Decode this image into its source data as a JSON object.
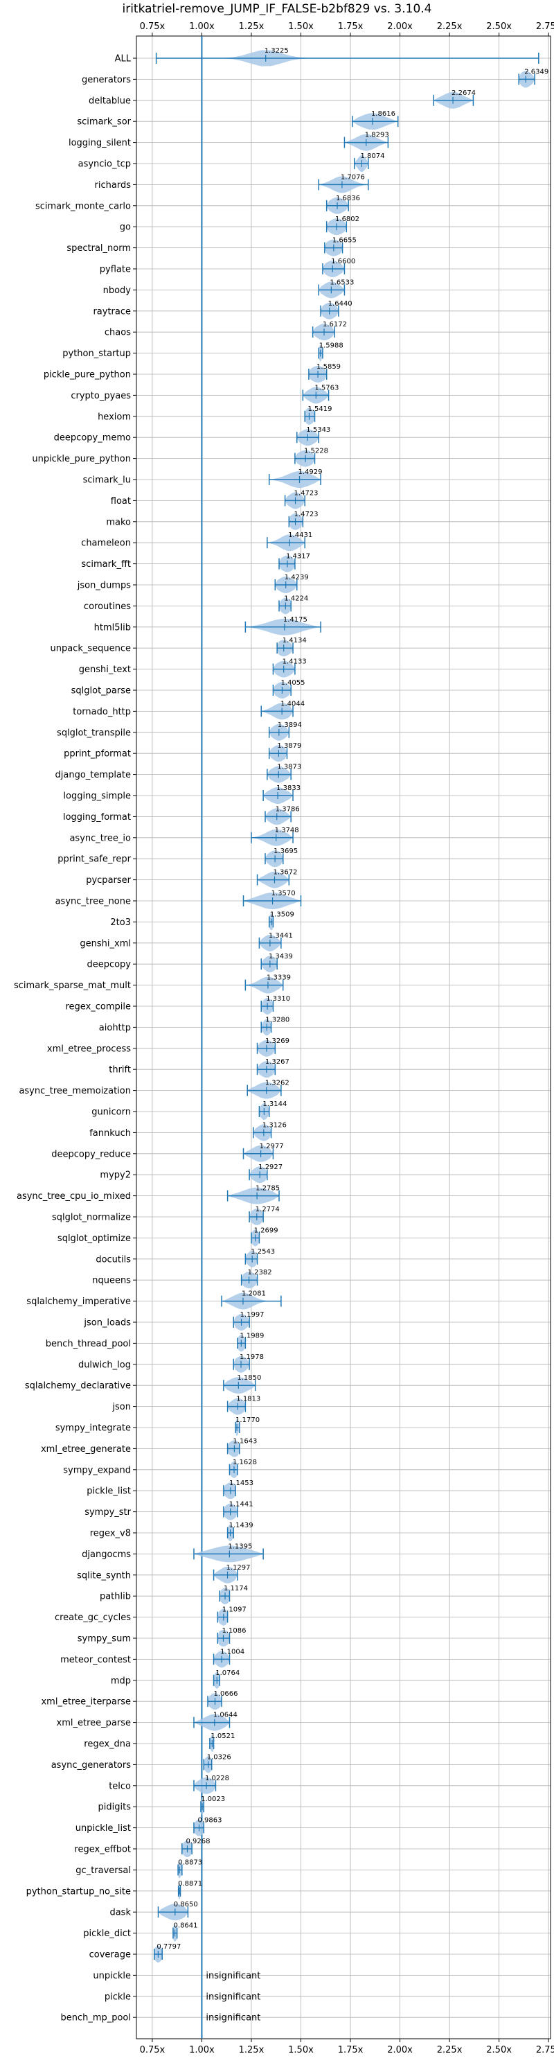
{
  "chart_data": {
    "type": "violin",
    "title": "iritkatriel-remove_JUMP_IF_FALSE-b2bf829 vs. 3.10.4",
    "xlim": [
      0.67,
      2.76
    ],
    "xticks": [
      0.75,
      1.0,
      1.25,
      1.5,
      1.75,
      2.0,
      2.25,
      2.5,
      2.75
    ],
    "xtick_labels": [
      "0.75x",
      "1.00x",
      "1.25x",
      "1.50x",
      "1.75x",
      "2.00x",
      "2.25x",
      "2.50x",
      "2.75x"
    ],
    "reference_line": 1.0,
    "grid": true,
    "colors": {
      "violin": "#a8c8e8",
      "line": "#1f77b4",
      "grid": "#b0b0b0",
      "text": "#000000"
    },
    "insignificant_label": "insignificant",
    "benchmarks": [
      {
        "name": "ALL",
        "value": 1.3225,
        "label": "1.3225",
        "min": 0.77,
        "max": 2.7,
        "spread": 0.08
      },
      {
        "name": "generators",
        "value": 2.6349,
        "label": "2.6349",
        "min": 2.6,
        "max": 2.68,
        "spread": 0.03
      },
      {
        "name": "deltablue",
        "value": 2.2674,
        "label": "2.2674",
        "min": 2.17,
        "max": 2.37,
        "spread": 0.05
      },
      {
        "name": "scimark_sor",
        "value": 1.8616,
        "label": "1.8616",
        "min": 1.76,
        "max": 1.99,
        "spread": 0.06
      },
      {
        "name": "logging_silent",
        "value": 1.8293,
        "label": "1.8293",
        "min": 1.72,
        "max": 1.94,
        "spread": 0.05
      },
      {
        "name": "asyncio_tcp",
        "value": 1.8074,
        "label": "1.8074",
        "min": 1.77,
        "max": 1.84,
        "spread": 0.02
      },
      {
        "name": "richards",
        "value": 1.7076,
        "label": "1.7076",
        "min": 1.59,
        "max": 1.84,
        "spread": 0.05
      },
      {
        "name": "scimark_monte_carlo",
        "value": 1.6836,
        "label": "1.6836",
        "min": 1.63,
        "max": 1.74,
        "spread": 0.04
      },
      {
        "name": "go",
        "value": 1.6802,
        "label": "1.6802",
        "min": 1.63,
        "max": 1.73,
        "spread": 0.04
      },
      {
        "name": "spectral_norm",
        "value": 1.6655,
        "label": "1.6655",
        "min": 1.62,
        "max": 1.71,
        "spread": 0.04
      },
      {
        "name": "pyflate",
        "value": 1.66,
        "label": "1.6600",
        "min": 1.61,
        "max": 1.72,
        "spread": 0.04
      },
      {
        "name": "nbody",
        "value": 1.6533,
        "label": "1.6533",
        "min": 1.59,
        "max": 1.72,
        "spread": 0.04
      },
      {
        "name": "raytrace",
        "value": 1.644,
        "label": "1.6440",
        "min": 1.6,
        "max": 1.69,
        "spread": 0.035
      },
      {
        "name": "chaos",
        "value": 1.6172,
        "label": "1.6172",
        "min": 1.56,
        "max": 1.67,
        "spread": 0.04
      },
      {
        "name": "python_startup",
        "value": 1.5988,
        "label": "1.5988",
        "min": 1.59,
        "max": 1.61,
        "spread": 0.008
      },
      {
        "name": "pickle_pure_python",
        "value": 1.5859,
        "label": "1.5859",
        "min": 1.54,
        "max": 1.63,
        "spread": 0.04
      },
      {
        "name": "crypto_pyaes",
        "value": 1.5763,
        "label": "1.5763",
        "min": 1.51,
        "max": 1.64,
        "spread": 0.04
      },
      {
        "name": "hexiom",
        "value": 1.5419,
        "label": "1.5419",
        "min": 1.52,
        "max": 1.57,
        "spread": 0.025
      },
      {
        "name": "deepcopy_memo",
        "value": 1.5343,
        "label": "1.5343",
        "min": 1.48,
        "max": 1.59,
        "spread": 0.04
      },
      {
        "name": "unpickle_pure_python",
        "value": 1.5228,
        "label": "1.5228",
        "min": 1.47,
        "max": 1.57,
        "spread": 0.04
      },
      {
        "name": "scimark_lu",
        "value": 1.4929,
        "label": "1.4929",
        "min": 1.34,
        "max": 1.6,
        "spread": 0.06
      },
      {
        "name": "float",
        "value": 1.4723,
        "label": "1.4723",
        "min": 1.42,
        "max": 1.52,
        "spread": 0.035
      },
      {
        "name": "mako",
        "value": 1.4723,
        "label": "1.4723",
        "min": 1.44,
        "max": 1.51,
        "spread": 0.03
      },
      {
        "name": "chameleon",
        "value": 1.4431,
        "label": "1.4431",
        "min": 1.33,
        "max": 1.52,
        "spread": 0.045
      },
      {
        "name": "scimark_fft",
        "value": 1.4317,
        "label": "1.4317",
        "min": 1.39,
        "max": 1.47,
        "spread": 0.035
      },
      {
        "name": "json_dumps",
        "value": 1.4239,
        "label": "1.4239",
        "min": 1.37,
        "max": 1.48,
        "spread": 0.04
      },
      {
        "name": "coroutines",
        "value": 1.4224,
        "label": "1.4224",
        "min": 1.39,
        "max": 1.45,
        "spread": 0.025
      },
      {
        "name": "html5lib",
        "value": 1.4175,
        "label": "1.4175",
        "min": 1.22,
        "max": 1.6,
        "spread": 0.08
      },
      {
        "name": "unpack_sequence",
        "value": 1.4134,
        "label": "1.4134",
        "min": 1.38,
        "max": 1.46,
        "spread": 0.035
      },
      {
        "name": "genshi_text",
        "value": 1.4133,
        "label": "1.4133",
        "min": 1.36,
        "max": 1.47,
        "spread": 0.04
      },
      {
        "name": "sqlglot_parse",
        "value": 1.4055,
        "label": "1.4055",
        "min": 1.36,
        "max": 1.45,
        "spread": 0.035
      },
      {
        "name": "tornado_http",
        "value": 1.4044,
        "label": "1.4044",
        "min": 1.3,
        "max": 1.46,
        "spread": 0.045
      },
      {
        "name": "sqlglot_transpile",
        "value": 1.3894,
        "label": "1.3894",
        "min": 1.34,
        "max": 1.44,
        "spread": 0.035
      },
      {
        "name": "pprint_pformat",
        "value": 1.3879,
        "label": "1.3879",
        "min": 1.34,
        "max": 1.43,
        "spread": 0.035
      },
      {
        "name": "django_template",
        "value": 1.3873,
        "label": "1.3873",
        "min": 1.33,
        "max": 1.45,
        "spread": 0.04
      },
      {
        "name": "logging_simple",
        "value": 1.3833,
        "label": "1.3833",
        "min": 1.31,
        "max": 1.46,
        "spread": 0.045
      },
      {
        "name": "logging_format",
        "value": 1.3786,
        "label": "1.3786",
        "min": 1.32,
        "max": 1.45,
        "spread": 0.04
      },
      {
        "name": "async_tree_io",
        "value": 1.3748,
        "label": "1.3748",
        "min": 1.25,
        "max": 1.46,
        "spread": 0.05
      },
      {
        "name": "pprint_safe_repr",
        "value": 1.3695,
        "label": "1.3695",
        "min": 1.32,
        "max": 1.41,
        "spread": 0.035
      },
      {
        "name": "pycparser",
        "value": 1.3672,
        "label": "1.3672",
        "min": 1.28,
        "max": 1.44,
        "spread": 0.045
      },
      {
        "name": "async_tree_none",
        "value": 1.357,
        "label": "1.3570",
        "min": 1.21,
        "max": 1.5,
        "spread": 0.07
      },
      {
        "name": "2to3",
        "value": 1.3509,
        "label": "1.3509",
        "min": 1.34,
        "max": 1.36,
        "spread": 0.012
      },
      {
        "name": "genshi_xml",
        "value": 1.3441,
        "label": "1.3441",
        "min": 1.29,
        "max": 1.4,
        "spread": 0.035
      },
      {
        "name": "deepcopy",
        "value": 1.3439,
        "label": "1.3439",
        "min": 1.3,
        "max": 1.38,
        "spread": 0.03
      },
      {
        "name": "scimark_sparse_mat_mult",
        "value": 1.3339,
        "label": "1.3339",
        "min": 1.22,
        "max": 1.41,
        "spread": 0.045
      },
      {
        "name": "regex_compile",
        "value": 1.331,
        "label": "1.3310",
        "min": 1.3,
        "max": 1.36,
        "spread": 0.025
      },
      {
        "name": "aiohttp",
        "value": 1.328,
        "label": "1.3280",
        "min": 1.3,
        "max": 1.35,
        "spread": 0.02
      },
      {
        "name": "xml_etree_process",
        "value": 1.3269,
        "label": "1.3269",
        "min": 1.28,
        "max": 1.37,
        "spread": 0.035
      },
      {
        "name": "thrift",
        "value": 1.3267,
        "label": "1.3267",
        "min": 1.28,
        "max": 1.37,
        "spread": 0.035
      },
      {
        "name": "async_tree_memoization",
        "value": 1.3262,
        "label": "1.3262",
        "min": 1.23,
        "max": 1.4,
        "spread": 0.05
      },
      {
        "name": "gunicorn",
        "value": 1.3144,
        "label": "1.3144",
        "min": 1.29,
        "max": 1.34,
        "spread": 0.02
      },
      {
        "name": "fannkuch",
        "value": 1.3126,
        "label": "1.3126",
        "min": 1.26,
        "max": 1.35,
        "spread": 0.035
      },
      {
        "name": "deepcopy_reduce",
        "value": 1.2977,
        "label": "1.2977",
        "min": 1.21,
        "max": 1.36,
        "spread": 0.045
      },
      {
        "name": "mypy2",
        "value": 1.2927,
        "label": "1.2927",
        "min": 1.24,
        "max": 1.33,
        "spread": 0.035
      },
      {
        "name": "async_tree_cpu_io_mixed",
        "value": 1.2785,
        "label": "1.2785",
        "min": 1.13,
        "max": 1.39,
        "spread": 0.07
      },
      {
        "name": "sqlglot_normalize",
        "value": 1.2774,
        "label": "1.2774",
        "min": 1.24,
        "max": 1.31,
        "spread": 0.03
      },
      {
        "name": "sqlglot_optimize",
        "value": 1.2699,
        "label": "1.2699",
        "min": 1.25,
        "max": 1.29,
        "spread": 0.02
      },
      {
        "name": "docutils",
        "value": 1.2543,
        "label": "1.2543",
        "min": 1.22,
        "max": 1.28,
        "spread": 0.025
      },
      {
        "name": "nqueens",
        "value": 1.2382,
        "label": "1.2382",
        "min": 1.2,
        "max": 1.28,
        "spread": 0.035
      },
      {
        "name": "sqlalchemy_imperative",
        "value": 1.2081,
        "label": "1.2081",
        "min": 1.1,
        "max": 1.4,
        "spread": 0.05
      },
      {
        "name": "json_loads",
        "value": 1.1997,
        "label": "1.1997",
        "min": 1.16,
        "max": 1.24,
        "spread": 0.03
      },
      {
        "name": "bench_thread_pool",
        "value": 1.1989,
        "label": "1.1989",
        "min": 1.18,
        "max": 1.22,
        "spread": 0.02
      },
      {
        "name": "dulwich_log",
        "value": 1.1978,
        "label": "1.1978",
        "min": 1.16,
        "max": 1.24,
        "spread": 0.03
      },
      {
        "name": "sqlalchemy_declarative",
        "value": 1.185,
        "label": "1.1850",
        "min": 1.11,
        "max": 1.27,
        "spread": 0.05
      },
      {
        "name": "json",
        "value": 1.1813,
        "label": "1.1813",
        "min": 1.13,
        "max": 1.22,
        "spread": 0.035
      },
      {
        "name": "sympy_integrate",
        "value": 1.177,
        "label": "1.1770",
        "min": 1.17,
        "max": 1.19,
        "spread": 0.008
      },
      {
        "name": "xml_etree_generate",
        "value": 1.1643,
        "label": "1.1643",
        "min": 1.13,
        "max": 1.19,
        "spread": 0.03
      },
      {
        "name": "sympy_expand",
        "value": 1.1628,
        "label": "1.1628",
        "min": 1.14,
        "max": 1.18,
        "spread": 0.02
      },
      {
        "name": "pickle_list",
        "value": 1.1453,
        "label": "1.1453",
        "min": 1.11,
        "max": 1.17,
        "spread": 0.03
      },
      {
        "name": "sympy_str",
        "value": 1.1441,
        "label": "1.1441",
        "min": 1.11,
        "max": 1.18,
        "spread": 0.03
      },
      {
        "name": "regex_v8",
        "value": 1.1439,
        "label": "1.1439",
        "min": 1.13,
        "max": 1.16,
        "spread": 0.015
      },
      {
        "name": "djangocms",
        "value": 1.1395,
        "label": "1.1395",
        "min": 0.96,
        "max": 1.31,
        "spread": 0.09
      },
      {
        "name": "sqlite_synth",
        "value": 1.1297,
        "label": "1.1297",
        "min": 1.06,
        "max": 1.18,
        "spread": 0.04
      },
      {
        "name": "pathlib",
        "value": 1.1174,
        "label": "1.1174",
        "min": 1.09,
        "max": 1.14,
        "spread": 0.025
      },
      {
        "name": "create_gc_cycles",
        "value": 1.1097,
        "label": "1.1097",
        "min": 1.08,
        "max": 1.13,
        "spread": 0.025
      },
      {
        "name": "sympy_sum",
        "value": 1.1086,
        "label": "1.1086",
        "min": 1.08,
        "max": 1.14,
        "spread": 0.03
      },
      {
        "name": "meteor_contest",
        "value": 1.1004,
        "label": "1.1004",
        "min": 1.06,
        "max": 1.14,
        "spread": 0.03
      },
      {
        "name": "mdp",
        "value": 1.0764,
        "label": "1.0764",
        "min": 1.06,
        "max": 1.09,
        "spread": 0.015
      },
      {
        "name": "xml_etree_iterparse",
        "value": 1.0666,
        "label": "1.0666",
        "min": 1.03,
        "max": 1.1,
        "spread": 0.03
      },
      {
        "name": "xml_etree_parse",
        "value": 1.0644,
        "label": "1.0644",
        "min": 0.96,
        "max": 1.14,
        "spread": 0.05
      },
      {
        "name": "regex_dna",
        "value": 1.0521,
        "label": "1.0521",
        "min": 1.04,
        "max": 1.06,
        "spread": 0.01
      },
      {
        "name": "async_generators",
        "value": 1.0326,
        "label": "1.0326",
        "min": 1.01,
        "max": 1.05,
        "spread": 0.02
      },
      {
        "name": "telco",
        "value": 1.0228,
        "label": "1.0228",
        "min": 0.96,
        "max": 1.07,
        "spread": 0.04
      },
      {
        "name": "pidigits",
        "value": 1.0023,
        "label": "1.0023",
        "min": 0.995,
        "max": 1.01,
        "spread": 0.006
      },
      {
        "name": "unpickle_list",
        "value": 0.9863,
        "label": "0.9863",
        "min": 0.96,
        "max": 1.01,
        "spread": 0.025
      },
      {
        "name": "regex_effbot",
        "value": 0.9268,
        "label": "0.9268",
        "min": 0.9,
        "max": 0.95,
        "spread": 0.025
      },
      {
        "name": "gc_traversal",
        "value": 0.8873,
        "label": "0.8873",
        "min": 0.88,
        "max": 0.9,
        "spread": 0.01
      },
      {
        "name": "python_startup_no_site",
        "value": 0.8871,
        "label": "0.8871",
        "min": 0.882,
        "max": 0.892,
        "spread": 0.006
      },
      {
        "name": "dask",
        "value": 0.865,
        "label": "0.8650",
        "min": 0.78,
        "max": 0.93,
        "spread": 0.05
      },
      {
        "name": "pickle_dict",
        "value": 0.8641,
        "label": "0.8641",
        "min": 0.855,
        "max": 0.875,
        "spread": 0.012
      },
      {
        "name": "coverage",
        "value": 0.7797,
        "label": "0.7797",
        "min": 0.76,
        "max": 0.8,
        "spread": 0.02
      },
      {
        "name": "unpickle",
        "value": null,
        "label": "",
        "insignificant": true
      },
      {
        "name": "pickle",
        "value": null,
        "label": "",
        "insignificant": true
      },
      {
        "name": "bench_mp_pool",
        "value": null,
        "label": "",
        "insignificant": true
      }
    ]
  }
}
